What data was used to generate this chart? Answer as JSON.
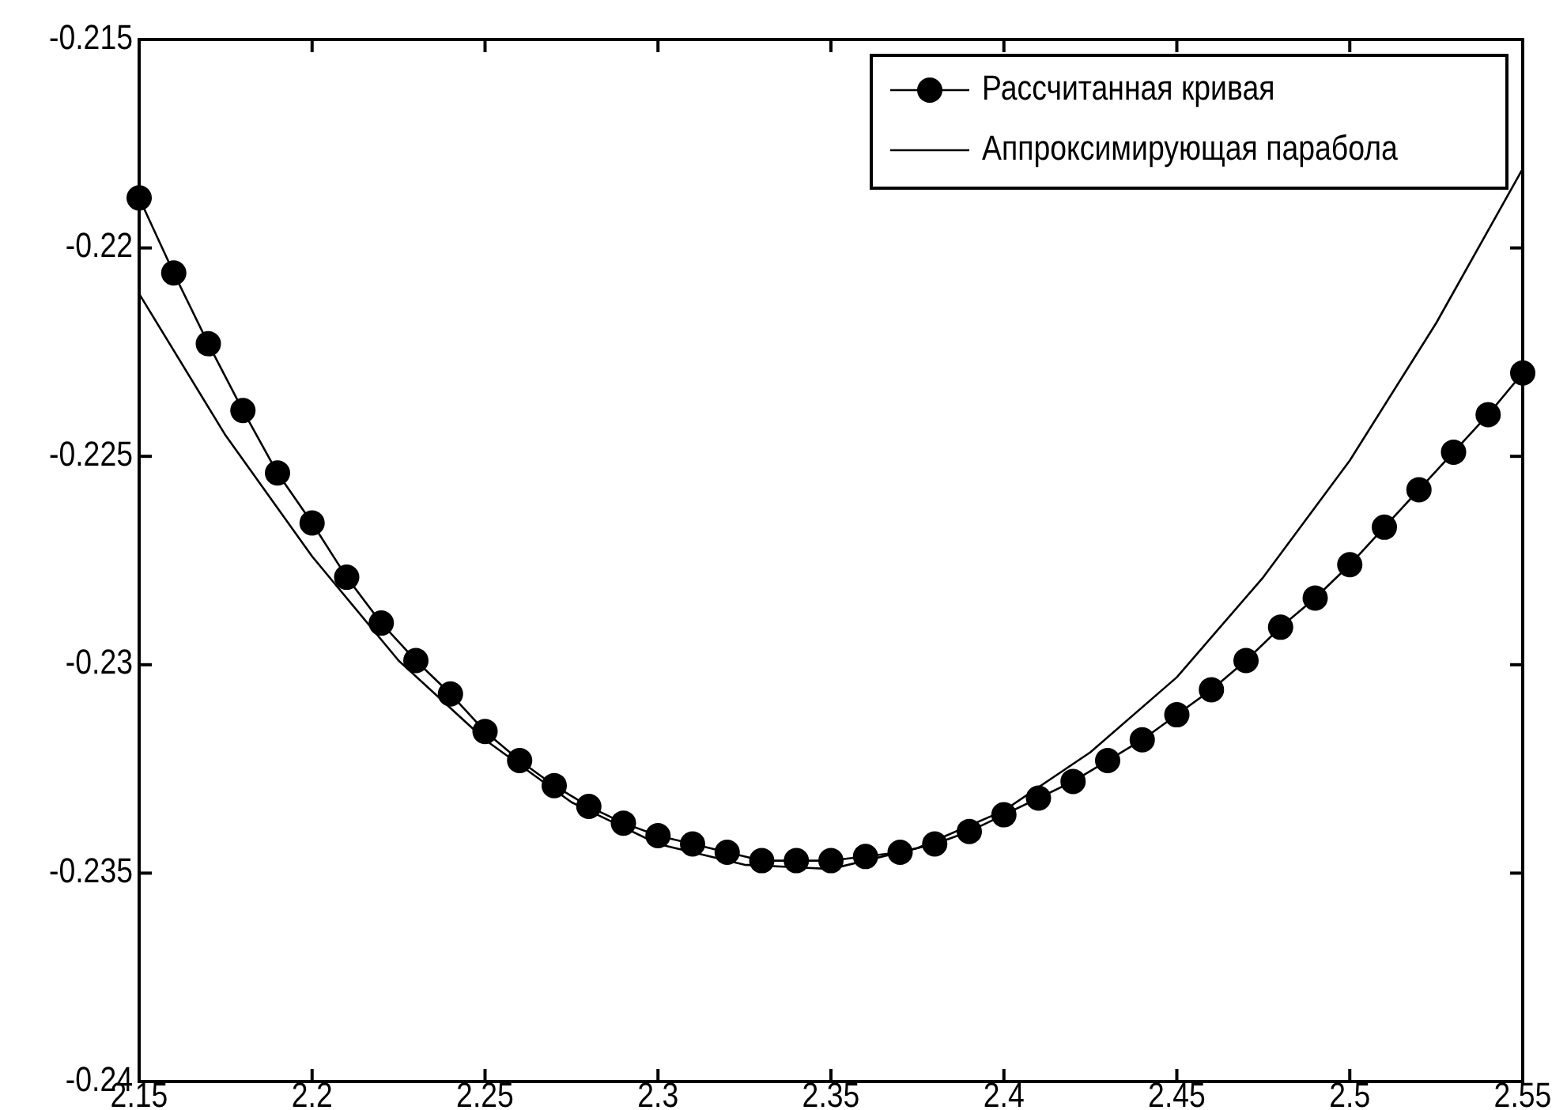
{
  "chart_data": {
    "type": "line",
    "x": [
      2.15,
      2.16,
      2.17,
      2.18,
      2.19,
      2.2,
      2.21,
      2.22,
      2.23,
      2.24,
      2.25,
      2.26,
      2.27,
      2.28,
      2.29,
      2.3,
      2.31,
      2.32,
      2.33,
      2.34,
      2.35,
      2.36,
      2.37,
      2.38,
      2.39,
      2.4,
      2.41,
      2.42,
      2.43,
      2.44,
      2.45,
      2.46,
      2.47,
      2.48,
      2.49,
      2.5,
      2.51,
      2.52,
      2.53,
      2.54,
      2.55
    ],
    "series": [
      {
        "name": "Рассчитанная кривая",
        "color": "#000000",
        "marker": "circle",
        "values": [
          -0.2188,
          -0.2206,
          -0.2223,
          -0.2239,
          -0.2254,
          -0.2266,
          -0.2279,
          -0.229,
          -0.2299,
          -0.2307,
          -0.2316,
          -0.2323,
          -0.2329,
          -0.2334,
          -0.2338,
          -0.2341,
          -0.2343,
          -0.2345,
          -0.2347,
          -0.2347,
          -0.2347,
          -0.2346,
          -0.2345,
          -0.2343,
          -0.234,
          -0.2336,
          -0.2332,
          -0.2328,
          -0.2323,
          -0.2318,
          -0.2312,
          -0.2306,
          -0.2299,
          -0.2291,
          -0.2284,
          -0.2276,
          -0.2267,
          -0.2258,
          -0.2249,
          -0.224,
          -0.223
        ]
      },
      {
        "name": "Аппроксимирующая парабола",
        "color": "#000000",
        "marker": "none",
        "x": [
          2.15,
          2.175,
          2.2,
          2.225,
          2.25,
          2.275,
          2.3,
          2.325,
          2.35,
          2.375,
          2.4,
          2.425,
          2.45,
          2.475,
          2.5,
          2.525,
          2.55
        ],
        "values": [
          -0.2211,
          -0.2245,
          -0.2274,
          -0.2299,
          -0.2318,
          -0.2333,
          -0.2343,
          -0.2348,
          -0.2349,
          -0.2344,
          -0.2335,
          -0.2321,
          -0.2303,
          -0.2279,
          -0.2251,
          -0.2218,
          -0.2181
        ]
      }
    ],
    "xlim": [
      2.15,
      2.55
    ],
    "xticks": [
      2.15,
      2.2,
      2.25,
      2.3,
      2.35,
      2.4,
      2.45,
      2.5,
      2.55
    ],
    "ylim": [
      -0.24,
      -0.215
    ],
    "yticks": [
      -0.24,
      -0.235,
      -0.23,
      -0.225,
      -0.22,
      -0.215
    ],
    "grid": false,
    "legend": "top right",
    "line_style": "solid"
  }
}
